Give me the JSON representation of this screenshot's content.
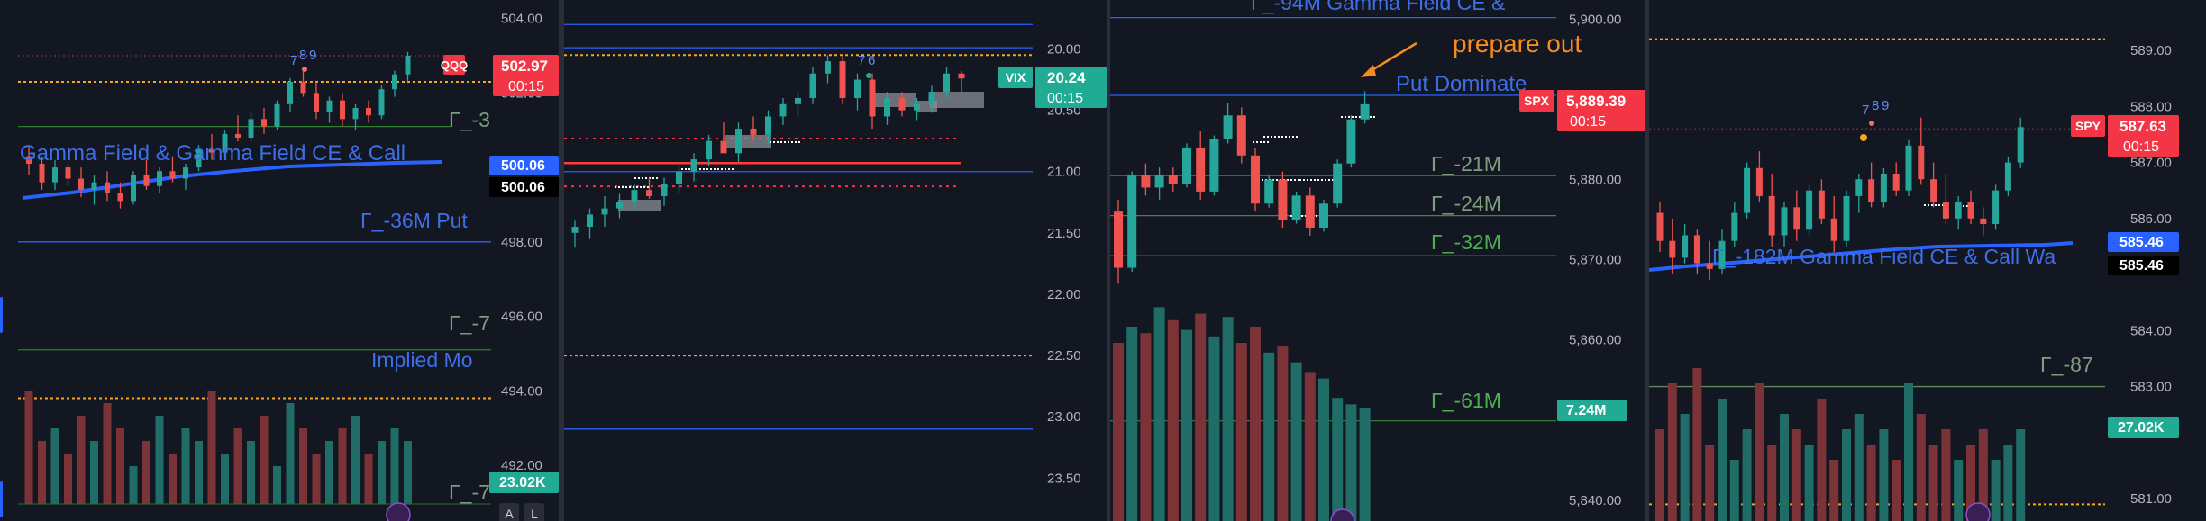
{
  "colors": {
    "bg": "#131722",
    "up": "#26a69a",
    "down": "#ef5350",
    "vol_up": "#1f6d66",
    "vol_down": "#7c3337",
    "gex_line": "#2e7d32",
    "blue_line": "#2962ff",
    "orange_dot": "#f5a623",
    "red_dot": "#f23645",
    "label_blue": "#3d6fe8",
    "label_green": "#4caf50",
    "label_muted": "#7e9d7e",
    "annotation_orange": "#f68b1f",
    "box_gray": "#8a8d96"
  },
  "panels": [
    {
      "symbol": "QQQ",
      "price_label": "502.97",
      "countdown": "00:15",
      "ma_labels": [
        "500.06",
        "500.06"
      ],
      "volume_label": "23.02K",
      "buttons": [
        "A",
        "L"
      ],
      "level_labels": [
        {
          "text": "Γ_-3",
          "price": 501.6
        },
        {
          "text": "Gamma Field & Gamma Field CE & Call",
          "price": 500.3
        },
        {
          "text": "Γ_-36M  Put",
          "price": 498.4
        },
        {
          "text": "Γ_-7",
          "price": 496.4
        },
        {
          "text": "Implied Mo",
          "price": 494.6
        },
        {
          "text": "Γ_-7",
          "price": 491.4
        }
      ]
    },
    {
      "symbol": "VIX",
      "price_label": "20.24",
      "countdown": "00:15",
      "counter_labels": [
        "6",
        "7"
      ]
    },
    {
      "symbol": "SPX",
      "price_label": "5,889.39",
      "countdown": "00:15",
      "volume_label": "7.24M",
      "annotation": "prepare out",
      "level_labels": [
        {
          "text": "Γ_-94M  Gamma Field CE &",
          "price": 5900.5
        },
        {
          "text": "Put Dominate",
          "price": 5890.9
        },
        {
          "text": "Γ_-21M",
          "price": 5881.4
        },
        {
          "text": "Γ_-24M",
          "price": 5876.4
        },
        {
          "text": "Γ_-32M",
          "price": 5871.4
        },
        {
          "text": "Γ_-61M",
          "price": 5850.6
        }
      ]
    },
    {
      "symbol": "SPY",
      "price_label": "587.63",
      "countdown": "00:15",
      "ma_labels": [
        "585.46",
        "585.46"
      ],
      "volume_label": "27.02K",
      "counter_labels": [
        "7",
        "8",
        "9"
      ],
      "level_labels": [
        {
          "text": "Γ_-182M  Gamma Field CE & Call Wa",
          "price": 585.2
        },
        {
          "text": "Γ_-87",
          "price": 583.3
        }
      ]
    }
  ],
  "chart_data": [
    {
      "type": "candlestick",
      "symbol": "QQQ",
      "y_ticks": [
        "504.00",
        "502.00",
        "498.00",
        "496.00",
        "494.00",
        "492.00"
      ],
      "ylim": [
        490.5,
        504.5
      ],
      "levels": {
        "gamma_blue": 500.3,
        "put_blue": 498.0,
        "gex_green_1": 501.1,
        "gex_green_2": 495.1,
        "implied_orange": 493.8,
        "red_dotted": 503.0,
        "orange_dotted": 502.3
      },
      "ohlc": [
        [
          500.3,
          500.6,
          499.8,
          500.1
        ],
        [
          500.1,
          500.3,
          499.4,
          499.6
        ],
        [
          499.6,
          500.2,
          499.4,
          500.0
        ],
        [
          500.0,
          500.1,
          499.5,
          499.7
        ],
        [
          499.7,
          500.0,
          499.2,
          499.4
        ],
        [
          499.4,
          499.8,
          499.0,
          499.6
        ],
        [
          499.6,
          499.9,
          499.1,
          499.3
        ],
        [
          499.3,
          499.6,
          498.9,
          499.1
        ],
        [
          499.1,
          499.9,
          499.0,
          499.8
        ],
        [
          499.8,
          500.2,
          499.4,
          499.5
        ],
        [
          499.5,
          500.0,
          499.3,
          499.9
        ],
        [
          499.9,
          500.3,
          499.6,
          499.7
        ],
        [
          499.7,
          500.1,
          499.4,
          500.0
        ],
        [
          500.0,
          500.6,
          499.9,
          500.5
        ],
        [
          500.5,
          500.9,
          500.2,
          500.4
        ],
        [
          500.4,
          501.0,
          500.3,
          500.9
        ],
        [
          500.9,
          501.4,
          500.7,
          500.8
        ],
        [
          500.8,
          501.5,
          500.7,
          501.3
        ],
        [
          501.3,
          501.6,
          500.9,
          501.1
        ],
        [
          501.1,
          501.8,
          501.0,
          501.7
        ],
        [
          501.7,
          502.4,
          501.5,
          502.3
        ],
        [
          502.3,
          502.6,
          501.9,
          502.0
        ],
        [
          502.0,
          502.3,
          501.3,
          501.5
        ],
        [
          501.5,
          501.9,
          501.2,
          501.8
        ],
        [
          501.8,
          502.0,
          501.1,
          501.3
        ],
        [
          501.3,
          501.7,
          501.0,
          501.6
        ],
        [
          501.6,
          501.8,
          501.2,
          501.4
        ],
        [
          501.4,
          502.2,
          501.3,
          502.1
        ],
        [
          502.1,
          502.6,
          501.9,
          502.5
        ],
        [
          502.5,
          503.1,
          502.3,
          503.0
        ]
      ],
      "volume": [
        9,
        5,
        6,
        4,
        7,
        5,
        8,
        6,
        3,
        5,
        7,
        4,
        6,
        5,
        9,
        4,
        6,
        5,
        7,
        3,
        8,
        6,
        4,
        5,
        6,
        7,
        4,
        5,
        6,
        5
      ]
    },
    {
      "type": "candlestick",
      "symbol": "VIX",
      "y_ticks": [
        "20.00",
        "20.50",
        "21.00",
        "21.50",
        "22.00",
        "22.50",
        "23.00",
        "23.50"
      ],
      "ylim": [
        19.6,
        23.85
      ],
      "y_inverted": true,
      "levels": {
        "blue_top": 19.8,
        "blue_2": 19.99,
        "orange_dotted_top": 20.05,
        "blue_mid": 21.0,
        "red_dotted_1": 20.73,
        "red_solid": 20.93,
        "red_dotted_2": 21.12,
        "orange_dotted_low": 22.5,
        "blue_low": 23.1
      },
      "ohlc": [
        [
          21.5,
          21.4,
          21.62,
          21.45
        ],
        [
          21.45,
          21.3,
          21.55,
          21.35
        ],
        [
          21.35,
          21.2,
          21.45,
          21.3
        ],
        [
          21.3,
          21.18,
          21.38,
          21.25
        ],
        [
          21.25,
          21.1,
          21.32,
          21.15
        ],
        [
          21.15,
          21.05,
          21.22,
          21.2
        ],
        [
          21.2,
          21.05,
          21.28,
          21.1
        ],
        [
          21.1,
          20.95,
          21.18,
          21.0
        ],
        [
          21.0,
          20.85,
          21.08,
          20.9
        ],
        [
          20.9,
          20.7,
          20.95,
          20.75
        ],
        [
          20.75,
          20.6,
          20.82,
          20.85
        ],
        [
          20.85,
          20.6,
          20.92,
          20.65
        ],
        [
          20.65,
          20.55,
          20.75,
          20.7
        ],
        [
          20.7,
          20.5,
          20.78,
          20.55
        ],
        [
          20.55,
          20.4,
          20.62,
          20.45
        ],
        [
          20.45,
          20.35,
          20.55,
          20.4
        ],
        [
          20.4,
          20.15,
          20.45,
          20.2
        ],
        [
          20.2,
          20.05,
          20.28,
          20.1
        ],
        [
          20.1,
          20.05,
          20.45,
          20.4
        ],
        [
          20.4,
          20.2,
          20.5,
          20.25
        ],
        [
          20.25,
          20.2,
          20.65,
          20.55
        ],
        [
          20.55,
          20.35,
          20.62,
          20.4
        ],
        [
          20.4,
          20.35,
          20.55,
          20.5
        ],
        [
          20.5,
          20.4,
          20.58,
          20.45
        ],
        [
          20.45,
          20.3,
          20.52,
          20.35
        ],
        [
          20.35,
          20.15,
          20.4,
          20.2
        ],
        [
          20.2,
          20.18,
          20.35,
          20.24
        ]
      ]
    },
    {
      "type": "candlestick",
      "symbol": "SPX",
      "y_ticks": [
        "5,900.00",
        "5,880.00",
        "5,870.00",
        "5,860.00",
        "5,840.00"
      ],
      "ylim": [
        5837.4,
        5902.4
      ],
      "levels": {
        "gamma_blue_top": 5900.2,
        "put_blue": 5890.5,
        "gex_21": 5880.5,
        "gex_24": 5875.5,
        "gex_32": 5870.5,
        "gex_61": 5849.9
      },
      "ohlc": [
        [
          5876.0,
          5877.5,
          5867.0,
          5869.0
        ],
        [
          5869.0,
          5881.0,
          5868.5,
          5880.5
        ],
        [
          5880.5,
          5882.0,
          5878.0,
          5879.0
        ],
        [
          5879.0,
          5881.5,
          5877.5,
          5880.5
        ],
        [
          5880.5,
          5881.5,
          5878.5,
          5879.5
        ],
        [
          5879.5,
          5884.5,
          5879.0,
          5884.0
        ],
        [
          5884.0,
          5886.0,
          5877.5,
          5878.5
        ],
        [
          5878.5,
          5885.5,
          5878.0,
          5885.0
        ],
        [
          5885.0,
          5889.5,
          5884.5,
          5888.0
        ],
        [
          5888.0,
          5889.0,
          5882.0,
          5883.0
        ],
        [
          5883.0,
          5884.0,
          5876.0,
          5877.0
        ],
        [
          5877.0,
          5880.5,
          5876.5,
          5880.0
        ],
        [
          5880.0,
          5881.0,
          5874.0,
          5875.0
        ],
        [
          5875.0,
          5878.5,
          5874.5,
          5878.0
        ],
        [
          5878.0,
          5879.0,
          5873.0,
          5874.0
        ],
        [
          5874.0,
          5877.5,
          5873.5,
          5877.0
        ],
        [
          5877.0,
          5882.5,
          5876.5,
          5882.0
        ],
        [
          5882.0,
          5888.0,
          5881.5,
          5887.5
        ],
        [
          5887.5,
          5891.0,
          5887.0,
          5889.39
        ]
      ],
      "volume": [
        55,
        60,
        58,
        66,
        62,
        59,
        64,
        57,
        63,
        55,
        60,
        52,
        54,
        49,
        46,
        44,
        38,
        36,
        35
      ]
    },
    {
      "type": "candlestick",
      "symbol": "SPY",
      "y_ticks": [
        "589.00",
        "588.00",
        "587.00",
        "586.00",
        "584.00",
        "583.00",
        "581.00"
      ],
      "ylim": [
        580.6,
        589.9
      ],
      "levels": {
        "orange_dotted_top": 589.2,
        "red_dotted": 587.6,
        "gamma_blue": 585.2,
        "gex_87": 583.0,
        "orange_dotted_low": 580.9
      },
      "ohlc": [
        [
          586.1,
          586.3,
          585.4,
          585.6
        ],
        [
          585.6,
          586.0,
          585.0,
          585.3
        ],
        [
          585.3,
          585.9,
          585.2,
          585.7
        ],
        [
          585.7,
          585.8,
          585.0,
          585.2
        ],
        [
          585.2,
          585.6,
          584.9,
          585.1
        ],
        [
          585.1,
          585.8,
          585.0,
          585.6
        ],
        [
          585.6,
          586.3,
          585.5,
          586.1
        ],
        [
          586.1,
          587.0,
          586.0,
          586.9
        ],
        [
          586.9,
          587.2,
          586.3,
          586.4
        ],
        [
          586.4,
          586.8,
          585.5,
          585.7
        ],
        [
          585.7,
          586.3,
          585.5,
          586.2
        ],
        [
          586.2,
          586.5,
          585.6,
          585.8
        ],
        [
          585.8,
          586.6,
          585.7,
          586.5
        ],
        [
          586.5,
          586.7,
          585.9,
          586.0
        ],
        [
          586.0,
          586.4,
          585.4,
          585.6
        ],
        [
          585.6,
          586.5,
          585.5,
          586.4
        ],
        [
          586.4,
          586.8,
          586.1,
          586.7
        ],
        [
          586.7,
          587.0,
          586.2,
          586.3
        ],
        [
          586.3,
          586.9,
          586.2,
          586.8
        ],
        [
          586.8,
          587.0,
          586.4,
          586.5
        ],
        [
          586.5,
          587.4,
          586.4,
          587.3
        ],
        [
          587.3,
          587.8,
          586.6,
          586.7
        ],
        [
          586.7,
          587.0,
          586.2,
          586.3
        ],
        [
          586.3,
          586.8,
          585.9,
          586.0
        ],
        [
          586.0,
          586.4,
          585.8,
          586.3
        ],
        [
          586.3,
          586.5,
          585.9,
          586.0
        ],
        [
          586.0,
          586.2,
          585.7,
          585.9
        ],
        [
          585.9,
          586.6,
          585.8,
          586.5
        ],
        [
          586.5,
          587.1,
          586.4,
          587.0
        ],
        [
          587.0,
          587.8,
          586.9,
          587.63
        ]
      ],
      "volume": [
        6,
        9,
        7,
        10,
        5,
        8,
        4,
        6,
        9,
        5,
        7,
        6,
        5,
        8,
        4,
        6,
        7,
        5,
        6,
        4,
        9,
        7,
        5,
        6,
        4,
        5,
        6,
        4,
        5,
        6
      ]
    }
  ]
}
